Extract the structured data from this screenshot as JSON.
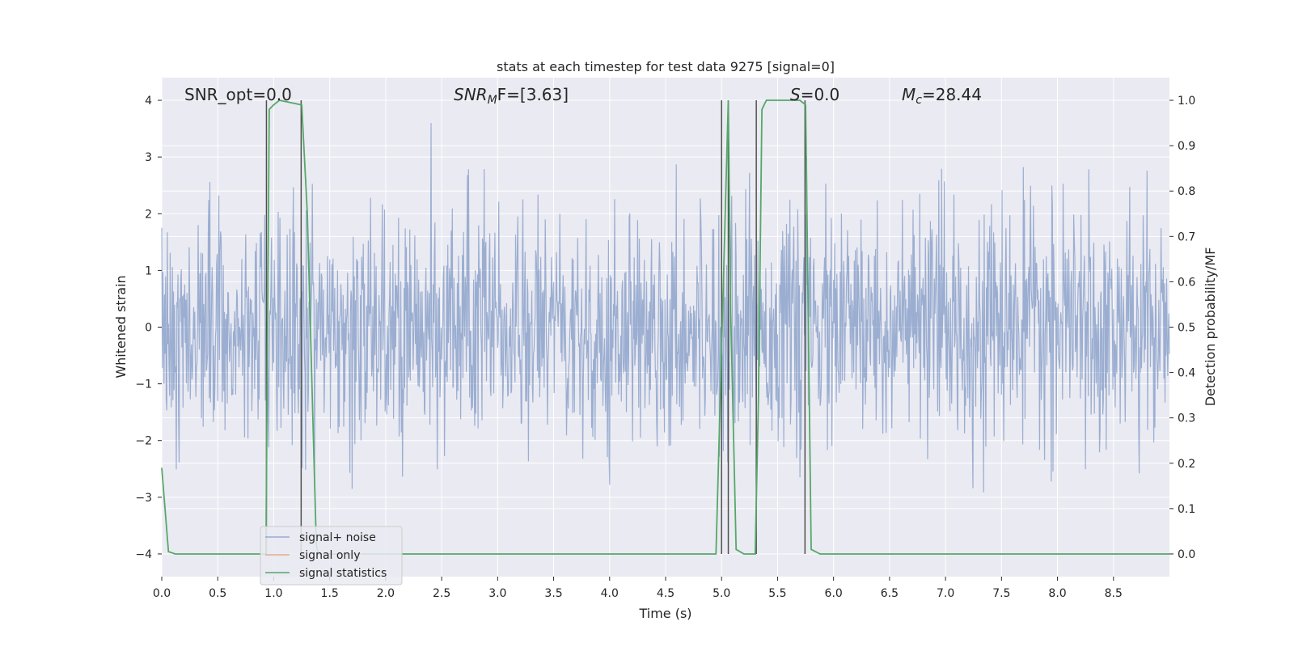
{
  "chart_data": {
    "type": "line",
    "title": "stats at each timestep for test data 9275 [signal=0]",
    "xlabel": "Time (s)",
    "ylabel_left": "Whitened strain",
    "ylabel_right": "Detection probability/MF",
    "xlim": [
      0.0,
      9.0
    ],
    "ylim_left": [
      -4.4,
      4.4
    ],
    "ylim_right": [
      -0.05,
      1.05
    ],
    "xticks": [
      "0.0",
      "0.5",
      "1.0",
      "1.5",
      "2.0",
      "2.5",
      "3.0",
      "3.5",
      "4.0",
      "4.5",
      "5.0",
      "5.5",
      "6.0",
      "6.5",
      "7.0",
      "7.5",
      "8.0",
      "8.5"
    ],
    "yticks_left": [
      "4",
      "3",
      "2",
      "1",
      "0",
      "−1",
      "−2",
      "−3",
      "−4"
    ],
    "yticks_right": [
      "1.0",
      "0.9",
      "0.8",
      "0.7",
      "0.6",
      "0.5",
      "0.4",
      "0.3",
      "0.2",
      "0.1",
      "0.0"
    ],
    "annotations": {
      "snr_opt": "SNR_opt=0.0",
      "snr_mf_main": "SNR",
      "snr_mf_sub": "M",
      "snr_mf_rest": "F=[3.63]",
      "s_italic": "S",
      "s_rest": "=0.0",
      "mc_main": "M",
      "mc_sub": "c",
      "mc_rest": "=28.44"
    },
    "legend": {
      "placement": "lower-left",
      "entries": [
        {
          "label": "signal+ noise",
          "color": "#4c72b0"
        },
        {
          "label": "signal only",
          "color": "#dd8452"
        },
        {
          "label": "signal statistics",
          "color": "#55a868"
        }
      ]
    },
    "series": [
      {
        "name": "signal+ noise",
        "color": "#4c72b0",
        "opacity": 0.5,
        "description": "whitened noise strain sampled densely over 0–9 s, amplitude mostly within ±2.5 with spikes to ±3.5",
        "sample_rate": 200,
        "amplitude_std": 1.0,
        "x_range": [
          0.0,
          9.0
        ]
      },
      {
        "name": "signal statistics",
        "color": "#55a868",
        "x": [
          0.0,
          0.06,
          0.12,
          0.9,
          0.93,
          0.96,
          1.0,
          1.05,
          1.25,
          1.3,
          1.38,
          1.4,
          4.95,
          5.0,
          5.06,
          5.08,
          5.13,
          5.2,
          5.3,
          5.33,
          5.36,
          5.4,
          5.7,
          5.75,
          5.8,
          5.88,
          9.0
        ],
        "y": [
          0.19,
          0.005,
          0.0,
          0.0,
          0.0,
          0.98,
          0.99,
          1.0,
          0.99,
          0.75,
          0.02,
          0.0,
          0.0,
          0.45,
          1.0,
          0.55,
          0.01,
          0.0,
          0.0,
          0.35,
          0.98,
          1.0,
          1.0,
          0.99,
          0.01,
          0.0,
          0.0
        ]
      }
    ],
    "vertical_lines_x": [
      0.935,
      1.245,
      5.0,
      5.06,
      5.31,
      5.745
    ],
    "vertical_line_color": "#505050",
    "grid": true
  }
}
